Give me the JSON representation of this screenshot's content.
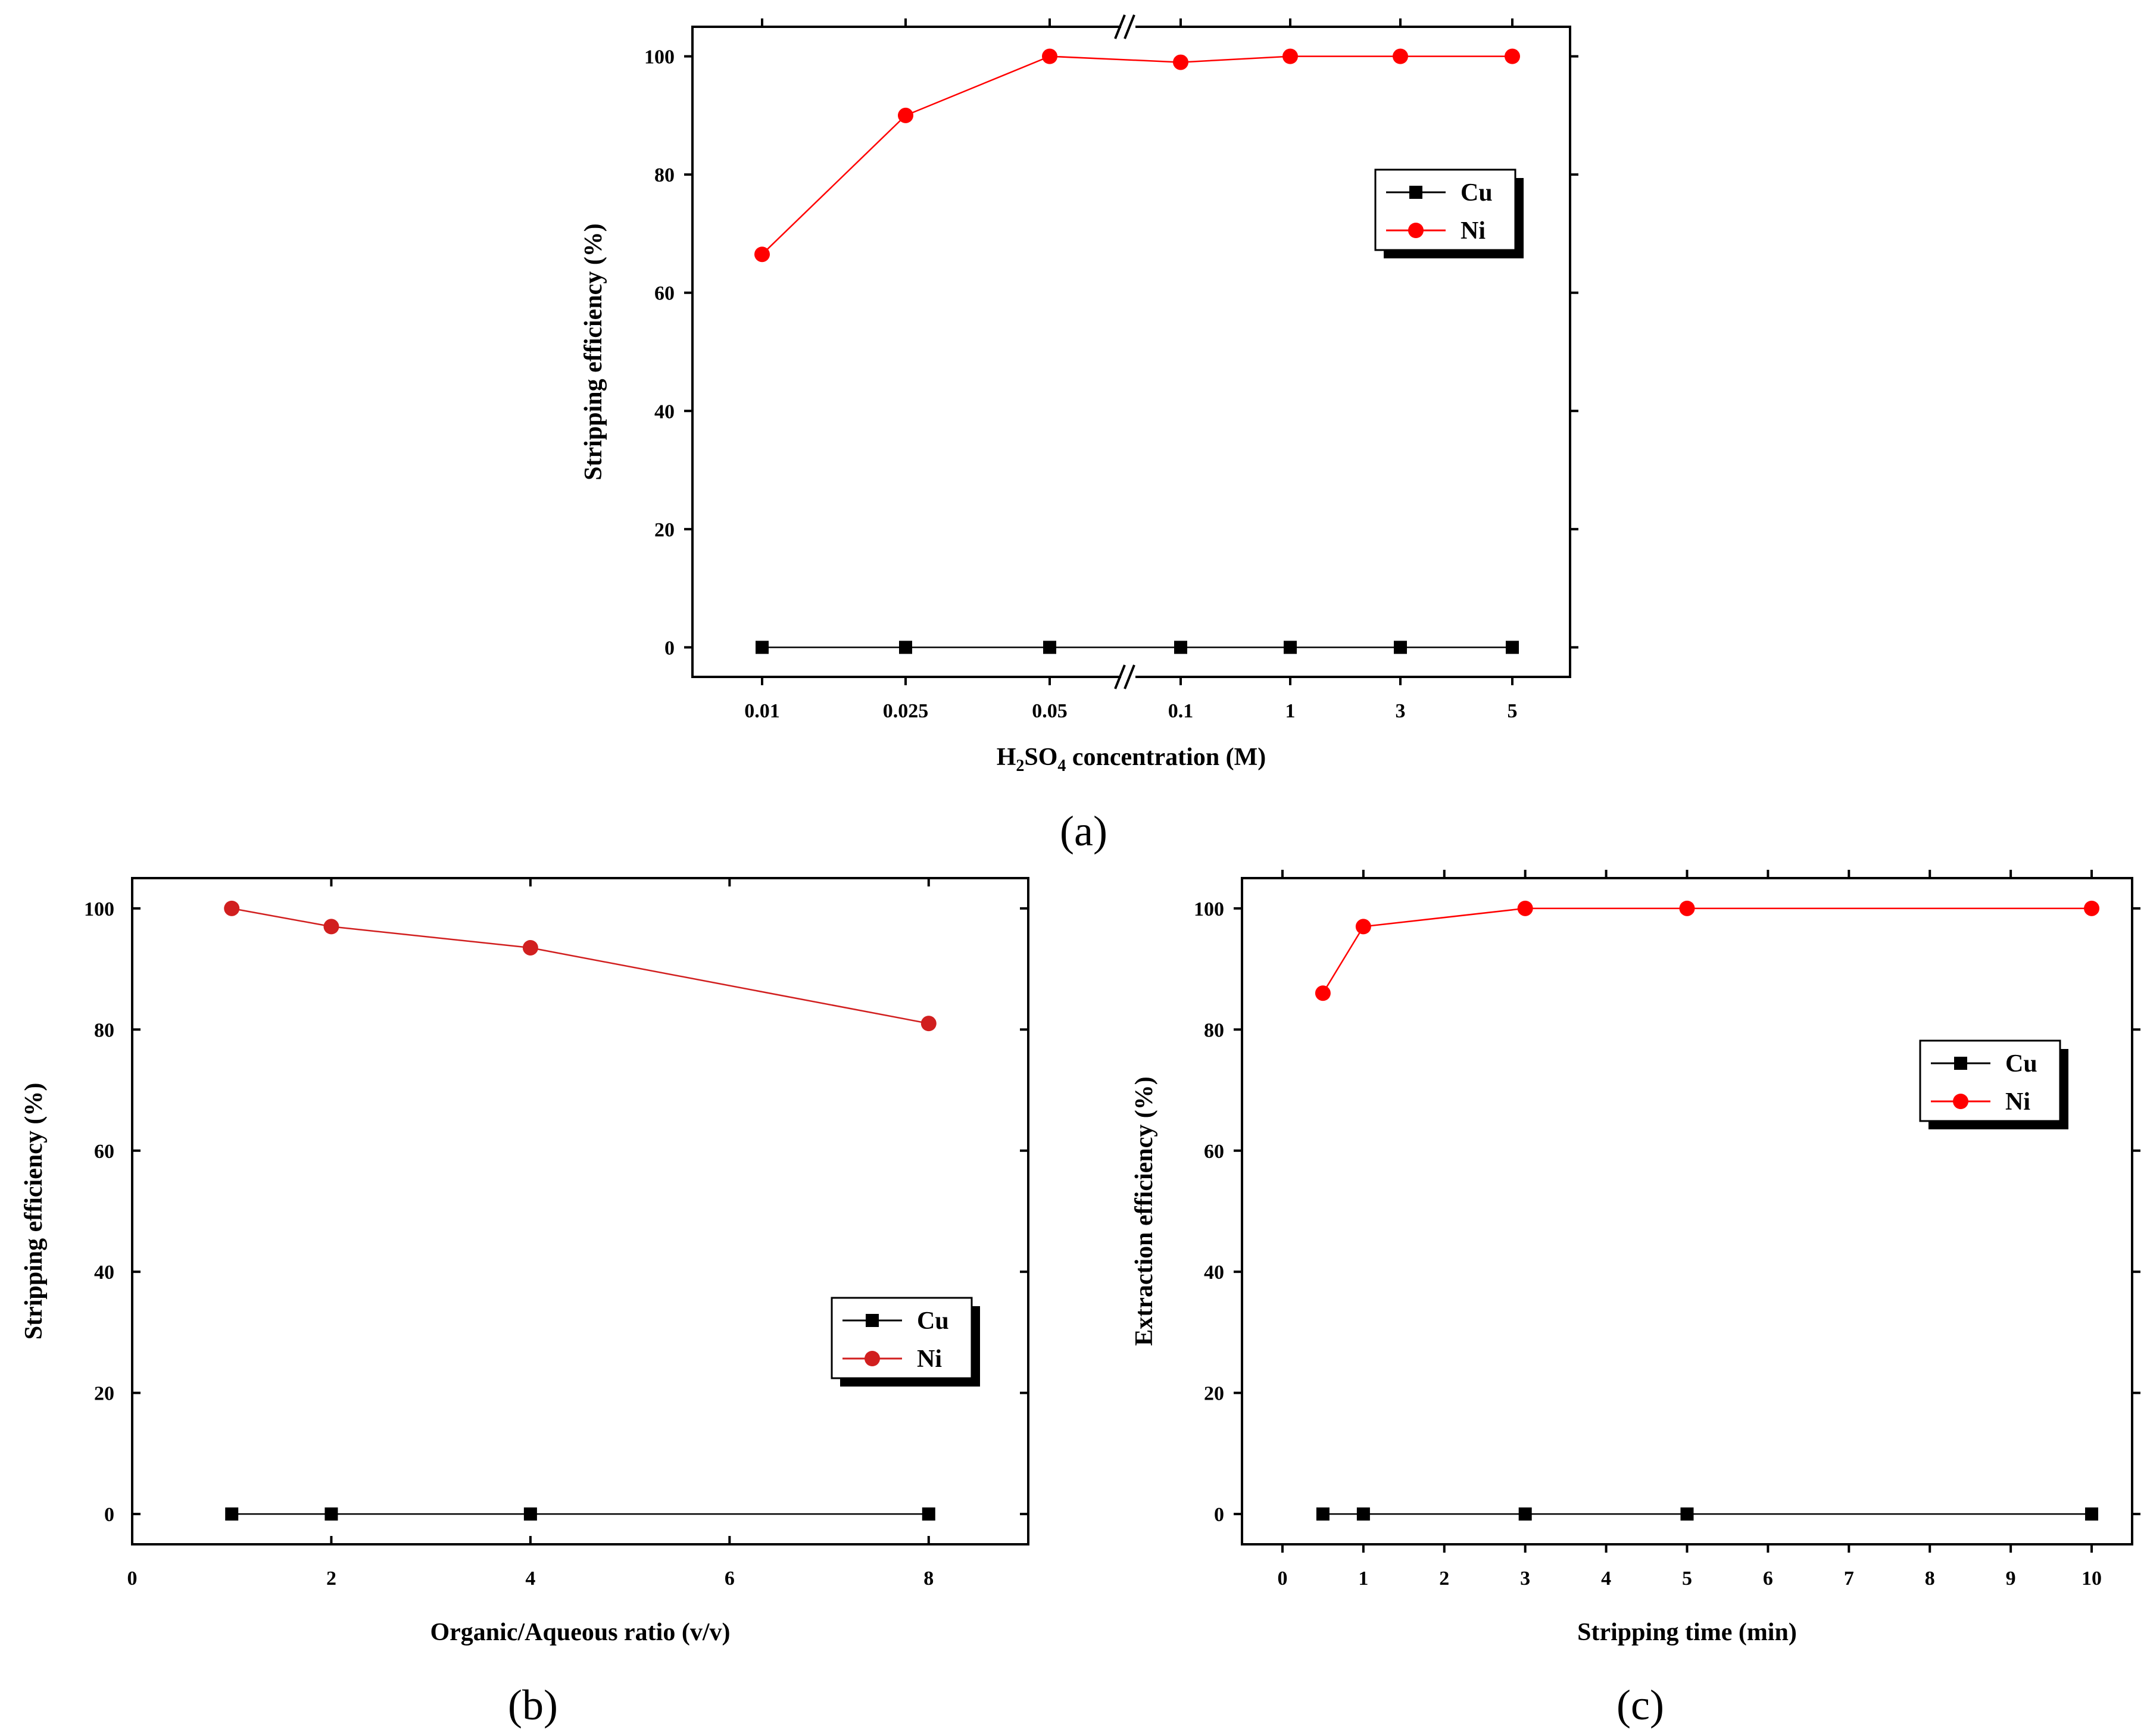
{
  "chart_data": [
    {
      "id": "a",
      "type": "line",
      "panel_label": "a",
      "xlabel": "H2SO4 concentration (M)",
      "xlabel_parts": {
        "p1": "H",
        "s1": "2",
        "p2": "SO",
        "s2": "4",
        "p3": " concentration (M)"
      },
      "ylabel": "Stripping efficiency (%)",
      "categories": [
        "0.01",
        "0.025",
        "0.05",
        "0.1",
        "1",
        "3",
        "5"
      ],
      "ylim": [
        -5,
        105
      ],
      "yticks": [
        0,
        20,
        40,
        60,
        80,
        100
      ],
      "axis_break_between": [
        "0.05",
        "0.1"
      ],
      "legend_position": "upper-right",
      "series": [
        {
          "name": "Cu",
          "color": "#000000",
          "marker": "square",
          "values": [
            0,
            0,
            0,
            0,
            0,
            0,
            0
          ]
        },
        {
          "name": "Ni",
          "color": "#ff0000",
          "marker": "circle",
          "values": [
            66.5,
            90,
            100,
            99,
            100,
            100,
            100
          ]
        }
      ]
    },
    {
      "id": "b",
      "type": "line",
      "panel_label": "b",
      "xlabel": "Organic/Aqueous ratio (v/v)",
      "ylabel": "Stripping efficiency (%)",
      "xlim": [
        0,
        9
      ],
      "xticks": [
        0,
        2,
        4,
        6,
        8
      ],
      "ylim": [
        -5,
        105
      ],
      "yticks": [
        0,
        20,
        40,
        60,
        80,
        100
      ],
      "legend_position": "lower-right",
      "series": [
        {
          "name": "Cu",
          "color": "#000000",
          "marker": "square",
          "x": [
            1,
            2,
            4,
            8
          ],
          "values": [
            0,
            0,
            0,
            0
          ]
        },
        {
          "name": "Ni",
          "color": "#d11f1f",
          "marker": "circle",
          "x": [
            1,
            2,
            4,
            8
          ],
          "values": [
            100,
            97,
            93.5,
            81
          ]
        }
      ]
    },
    {
      "id": "c",
      "type": "line",
      "panel_label": "c",
      "xlabel": "Stripping time (min)",
      "ylabel": "Extraction efficiency (%)",
      "xlim": [
        -0.5,
        10.5
      ],
      "xticks": [
        0,
        1,
        2,
        3,
        4,
        5,
        6,
        7,
        8,
        9,
        10
      ],
      "ylim": [
        -5,
        105
      ],
      "yticks": [
        0,
        20,
        40,
        60,
        80,
        100
      ],
      "legend_position": "upper-right",
      "series": [
        {
          "name": "Cu",
          "color": "#000000",
          "marker": "square",
          "x": [
            0.5,
            1,
            3,
            5,
            10
          ],
          "values": [
            0,
            0,
            0,
            0,
            0
          ]
        },
        {
          "name": "Ni",
          "color": "#ff0000",
          "marker": "circle",
          "x": [
            0.5,
            1,
            3,
            5,
            10
          ],
          "values": [
            86,
            97,
            100,
            100,
            100
          ]
        }
      ]
    }
  ]
}
